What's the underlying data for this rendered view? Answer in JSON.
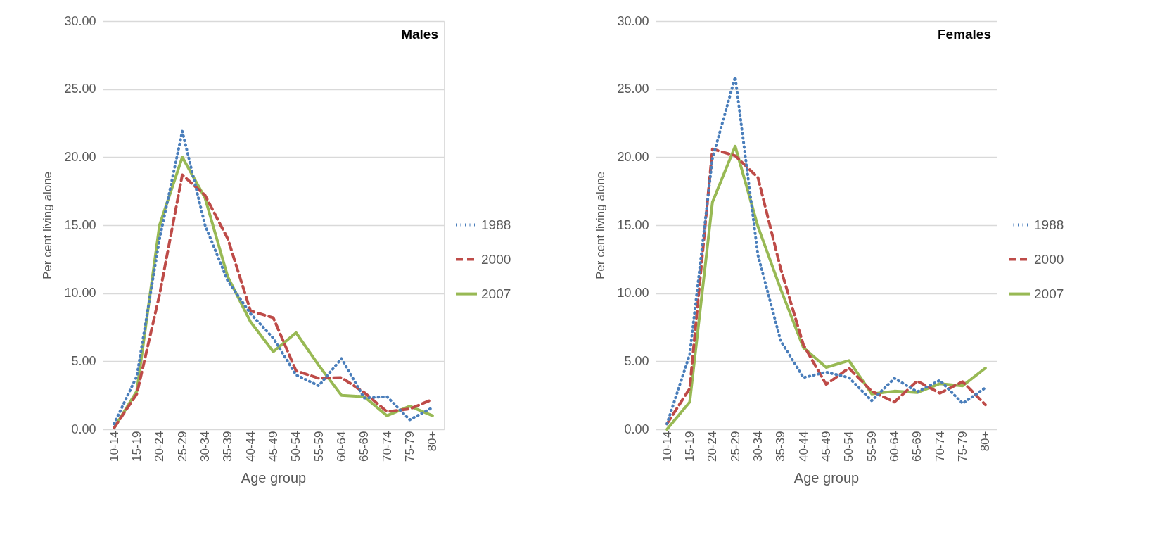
{
  "chart_data": [
    {
      "type": "line",
      "title": "Males",
      "xlabel": "Age group",
      "ylabel": "Per cent living alone",
      "categories": [
        "10-14",
        "15-19",
        "20-24",
        "25-29",
        "30-34",
        "35-39",
        "40-44",
        "45-49",
        "50-54",
        "55-59",
        "60-64",
        "65-69",
        "70-74",
        "75-79",
        "80+"
      ],
      "series": [
        {
          "name": "1988",
          "color": "#4a7ebb",
          "line_style": "dotted",
          "values": [
            0.4,
            3.9,
            14.0,
            21.9,
            15.0,
            10.9,
            8.5,
            6.7,
            4.0,
            3.2,
            5.2,
            2.3,
            2.4,
            0.7,
            1.6
          ]
        },
        {
          "name": "2000",
          "color": "#be4b48",
          "line_style": "dashed",
          "values": [
            0.1,
            2.6,
            9.9,
            18.7,
            17.2,
            14.0,
            8.7,
            8.2,
            4.3,
            3.75,
            3.8,
            2.7,
            1.3,
            1.5,
            2.2
          ]
        },
        {
          "name": "2007",
          "color": "#98b954",
          "line_style": "solid",
          "values": [
            0.1,
            2.8,
            15.0,
            20.0,
            17.0,
            11.2,
            7.9,
            5.7,
            7.1,
            4.7,
            2.5,
            2.4,
            1.0,
            1.7,
            1.0
          ]
        }
      ],
      "ylim": [
        0,
        30
      ],
      "yticks": [
        {
          "value": 0,
          "label": "0.00"
        },
        {
          "value": 5,
          "label": "5.00"
        },
        {
          "value": 10,
          "label": "10.00"
        },
        {
          "value": 15,
          "label": "15.00"
        },
        {
          "value": 20,
          "label": "20.00"
        },
        {
          "value": 25,
          "label": "25.00"
        },
        {
          "value": 30,
          "label": "30.00"
        }
      ],
      "grid": "y",
      "legend": "right"
    },
    {
      "type": "line",
      "title": "Females",
      "xlabel": "Age group",
      "ylabel": "Per cent living alone",
      "categories": [
        "10-14",
        "15-19",
        "20-24",
        "25-29",
        "30-34",
        "35-39",
        "40-44",
        "45-49",
        "50-54",
        "55-59",
        "60-64",
        "65-69",
        "70-74",
        "75-79",
        "80+"
      ],
      "series": [
        {
          "name": "1988",
          "color": "#4a7ebb",
          "line_style": "dotted",
          "values": [
            0.4,
            5.5,
            19.9,
            25.9,
            12.8,
            6.5,
            3.8,
            4.2,
            3.8,
            2.1,
            3.75,
            2.75,
            3.6,
            1.9,
            3.05
          ]
        },
        {
          "name": "2000",
          "color": "#be4b48",
          "line_style": "dashed",
          "values": [
            0.4,
            3.0,
            20.6,
            20.1,
            18.5,
            11.8,
            6.2,
            3.3,
            4.5,
            2.8,
            2.0,
            3.55,
            2.65,
            3.5,
            1.8
          ]
        },
        {
          "name": "2007",
          "color": "#98b954",
          "line_style": "solid",
          "values": [
            0.0,
            2.0,
            16.7,
            20.8,
            14.9,
            10.3,
            6.0,
            4.55,
            5.05,
            2.6,
            2.8,
            2.7,
            3.35,
            3.2,
            4.5
          ]
        }
      ],
      "ylim": [
        0,
        30
      ],
      "yticks": [
        {
          "value": 0,
          "label": "0.00"
        },
        {
          "value": 5,
          "label": "5.00"
        },
        {
          "value": 10,
          "label": "10.00"
        },
        {
          "value": 15,
          "label": "15.00"
        },
        {
          "value": 20,
          "label": "20.00"
        },
        {
          "value": 25,
          "label": "25.00"
        },
        {
          "value": 30,
          "label": "30.00"
        }
      ],
      "grid": "y",
      "legend": "right"
    }
  ]
}
